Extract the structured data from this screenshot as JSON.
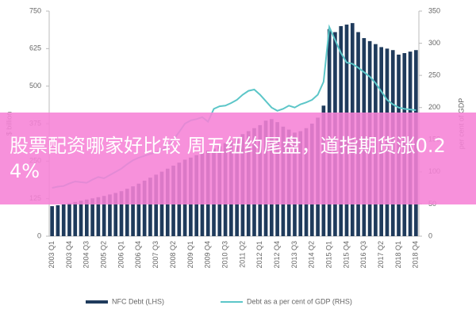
{
  "chart_data": {
    "type": "bar_line",
    "categories": [
      "2003 Q1",
      null,
      null,
      "2003 Q4",
      null,
      null,
      "2004 Q3",
      null,
      null,
      "2005 Q2",
      null,
      null,
      "2006 Q1",
      null,
      null,
      "2006 Q4",
      null,
      null,
      "2007 Q3",
      null,
      null,
      "2008 Q2",
      null,
      null,
      "2009 Q1",
      null,
      null,
      "2009 Q4",
      null,
      null,
      "2010 Q3",
      null,
      null,
      "2011 Q2",
      null,
      null,
      "2012 Q1",
      null,
      null,
      "2012 Q4",
      null,
      null,
      "2013 Q3",
      null,
      null,
      "2014 Q2",
      null,
      null,
      "2015 Q1",
      null,
      null,
      "2015 Q4",
      null,
      null,
      "2016 Q3",
      null,
      null,
      "2017 Q2",
      null,
      null,
      "2018 Q1",
      null,
      null,
      "2018 Q4"
    ],
    "series": [
      {
        "name": "NFC Debt (LHS)",
        "color": "#1f3b5c",
        "type": "bar",
        "axis": "y",
        "values": [
          100,
          103,
          106,
          110,
          114,
          118,
          122,
          126,
          130,
          134,
          139,
          144,
          150,
          158,
          166,
          175,
          185,
          195,
          205,
          215,
          225,
          235,
          245,
          255,
          262,
          270,
          278,
          285,
          292,
          300,
          310,
          320,
          330,
          340,
          350,
          360,
          370,
          385,
          390,
          380,
          365,
          355,
          345,
          350,
          360,
          375,
          395,
          435,
          690,
          680,
          700,
          705,
          710,
          680,
          660,
          650,
          640,
          630,
          625,
          620,
          605,
          610,
          615,
          620
        ]
      },
      {
        "name": "Debt as a per cent of GDP (RHS)",
        "color": "#5cc6c8",
        "type": "line",
        "axis": "y2",
        "values": [
          75,
          77,
          78,
          82,
          85,
          84,
          83,
          88,
          92,
          90,
          95,
          100,
          105,
          112,
          118,
          122,
          125,
          128,
          130,
          135,
          140,
          150,
          162,
          175,
          180,
          182,
          185,
          178,
          198,
          202,
          203,
          207,
          212,
          220,
          226,
          228,
          220,
          210,
          200,
          195,
          198,
          203,
          200,
          205,
          208,
          212,
          220,
          240,
          325,
          305,
          285,
          270,
          268,
          262,
          255,
          248,
          238,
          225,
          212,
          205,
          200,
          198,
          197,
          196
        ]
      }
    ],
    "ylabel": "$ billion",
    "y2label": "per cent of GDP",
    "ylim": [
      0,
      750
    ],
    "yticks": [
      0,
      125,
      250,
      375,
      500,
      625,
      750
    ],
    "y2lim": [
      0,
      350
    ],
    "y2ticks": [
      0,
      50,
      100,
      150,
      200,
      250,
      300,
      350
    ],
    "grid": false
  },
  "banner": {
    "text": "股票配资哪家好比较 周五纽约尾盘，道指期货涨0.24%"
  }
}
